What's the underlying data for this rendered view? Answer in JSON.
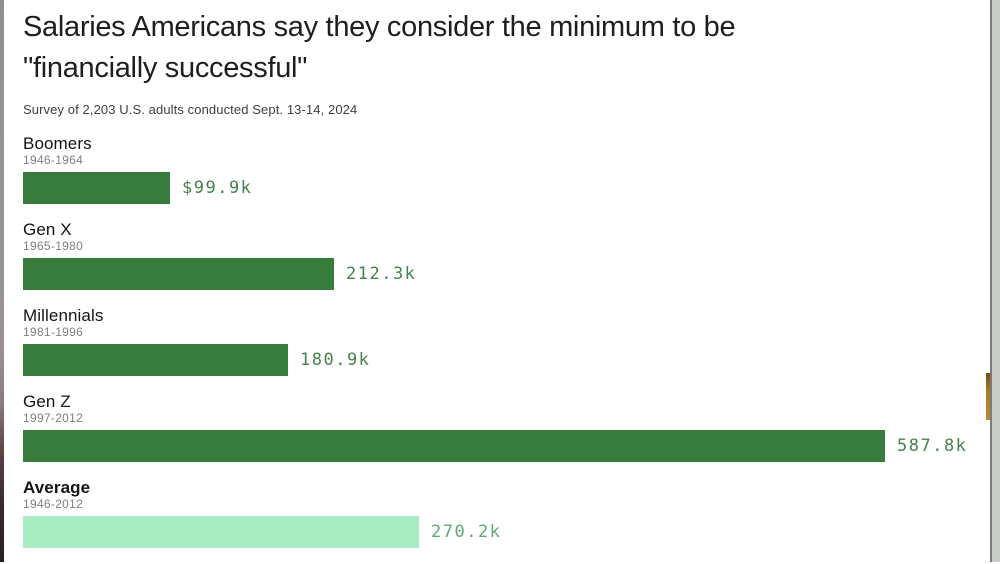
{
  "header": {
    "title": "Salaries Americans say they consider the minimum to be\n\"financially successful\"",
    "subtitle": "Survey of 2,203 U.S. adults conducted Sept. 13-14, 2024"
  },
  "chart_data": {
    "type": "bar",
    "orientation": "horizontal",
    "title": "Salaries Americans say they consider the minimum to be \"financially successful\"",
    "subtitle": "Survey of 2,203 U.S. adults conducted Sept. 13-14, 2024",
    "unit": "USD thousands per year",
    "categories": [
      "Boomers",
      "Gen X",
      "Millennials",
      "Gen Z",
      "Average"
    ],
    "year_ranges": [
      "1946-1964",
      "1965-1980",
      "1981-1996",
      "1997-2012",
      "1946-2012"
    ],
    "values": [
      99.9,
      212.3,
      180.9,
      587.8,
      270.2
    ],
    "value_labels": [
      "$99.9k",
      "212.3k",
      "180.9k",
      "587.8k",
      "270.2k"
    ],
    "xlim": [
      0,
      587.8
    ],
    "grid": false,
    "legend": "none",
    "bar_colors": [
      "#377b3d",
      "#377b3d",
      "#377b3d",
      "#377b3d",
      "#a8ecc3"
    ],
    "value_label_colors": [
      "#47814d",
      "#47814d",
      "#47814d",
      "#47814d",
      "#5fa873"
    ],
    "category_emphasis": [
      "normal",
      "normal",
      "normal",
      "normal",
      "bold"
    ]
  },
  "colors": {
    "background": "#ffffff",
    "title_text": "#1e1e1e",
    "subtitle_text": "#3f3f3f",
    "category_text": "#141414",
    "year_range_text": "#808080",
    "bar_dark_green": "#377b3d",
    "bar_light_green": "#a8ecc3"
  }
}
